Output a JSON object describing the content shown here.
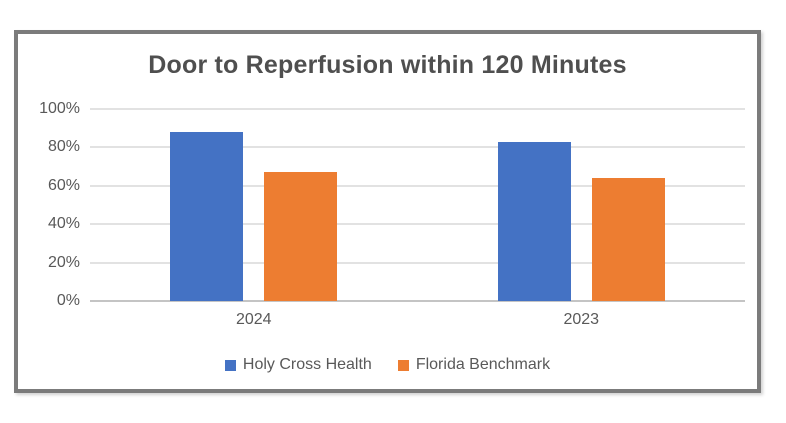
{
  "chart_data": {
    "type": "bar",
    "title": "Door to Reperfusion within 120 Minutes",
    "categories": [
      "2024",
      "2023"
    ],
    "series": [
      {
        "name": "Holy Cross Health",
        "color": "#4472C4",
        "values": [
          88,
          83
        ]
      },
      {
        "name": "Florida Benchmark",
        "color": "#ED7D31",
        "values": [
          67,
          64
        ]
      }
    ],
    "y_ticks": [
      "0%",
      "20%",
      "40%",
      "60%",
      "80%",
      "100%"
    ],
    "ylim": [
      0,
      100
    ],
    "xlabel": "",
    "ylabel": "",
    "grid": true,
    "legend_position": "bottom"
  },
  "colors": {
    "frame_border": "#7b7b7b",
    "grid_line": "#e2e2e2",
    "axis_line": "#c4c4c4",
    "text": "#595959",
    "title_text": "#4f4f4f"
  }
}
